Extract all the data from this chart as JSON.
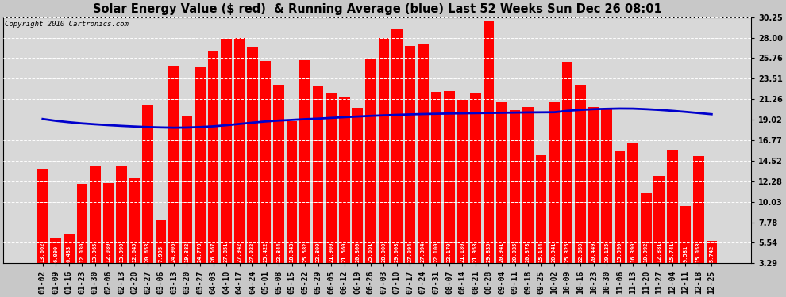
{
  "title": "Solar Energy Value ($ red)  & Running Average (blue) Last 52 Weeks Sun Dec 26 08:01",
  "copyright": "Copyright 2010 Cartronics.com",
  "categories": [
    "01-02",
    "01-09",
    "01-16",
    "01-23",
    "01-30",
    "02-06",
    "02-13",
    "02-20",
    "02-27",
    "03-06",
    "03-13",
    "03-20",
    "03-27",
    "04-03",
    "04-10",
    "04-17",
    "04-24",
    "05-01",
    "05-08",
    "05-15",
    "05-22",
    "05-29",
    "06-05",
    "06-12",
    "06-19",
    "06-26",
    "07-03",
    "07-10",
    "07-17",
    "07-24",
    "07-31",
    "08-07",
    "08-14",
    "08-21",
    "08-28",
    "09-04",
    "09-11",
    "09-18",
    "09-25",
    "10-02",
    "10-09",
    "10-16",
    "10-23",
    "10-30",
    "11-06",
    "11-13",
    "11-20",
    "11-27",
    "12-04",
    "12-11",
    "12-18",
    "12-25"
  ],
  "values": [
    13.662,
    6.09,
    6.433,
    12.03,
    13.965,
    12.08,
    13.99,
    12.645,
    20.653,
    7.995,
    24.906,
    19.382,
    24.776,
    26.567,
    27.851,
    27.942,
    27.022,
    25.422,
    22.844,
    18.843,
    25.582,
    22.8,
    21.9,
    21.56,
    20.3,
    25.651,
    28.0,
    29.008,
    27.094,
    27.394,
    22.1,
    22.17,
    21.18,
    21.958,
    29.835,
    20.941,
    20.035,
    20.378,
    15.144,
    20.941,
    25.325,
    22.85,
    20.449,
    20.135,
    15.59,
    16.39,
    10.992,
    12.881,
    15.741,
    9.581,
    15.058,
    5.742
  ],
  "running_avg": [
    19.1,
    18.9,
    18.75,
    18.62,
    18.52,
    18.43,
    18.35,
    18.28,
    18.22,
    18.18,
    18.15,
    18.17,
    18.22,
    18.3,
    18.42,
    18.56,
    18.7,
    18.83,
    18.93,
    19.0,
    19.08,
    19.14,
    19.22,
    19.3,
    19.37,
    19.44,
    19.5,
    19.55,
    19.6,
    19.64,
    19.67,
    19.7,
    19.72,
    19.74,
    19.76,
    19.78,
    19.8,
    19.82,
    19.83,
    19.84,
    20.0,
    20.1,
    20.18,
    20.22,
    20.25,
    20.24,
    20.18,
    20.1,
    20.0,
    19.88,
    19.75,
    19.62
  ],
  "yticks": [
    3.29,
    5.54,
    7.78,
    10.03,
    12.28,
    14.52,
    16.77,
    19.02,
    21.26,
    23.51,
    25.76,
    28.0,
    30.25
  ],
  "ylim_min": 3.29,
  "ylim_max": 30.25,
  "bar_color": "#ff0000",
  "line_color": "#0000cc",
  "bg_color": "#d8d8d8",
  "grid_color": "#ffffff",
  "title_fontsize": 10.5,
  "copyright_fontsize": 6.5,
  "tick_fontsize": 7,
  "bar_value_fontsize": 5,
  "line_width": 2.0
}
